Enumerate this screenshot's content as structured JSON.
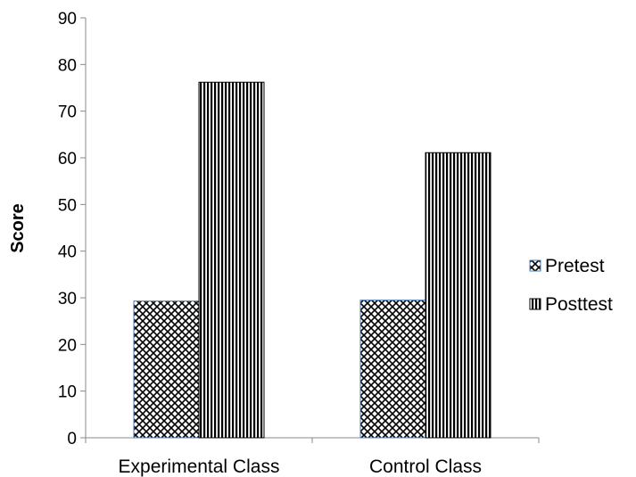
{
  "chart_data": {
    "type": "bar",
    "title": "",
    "xlabel": "",
    "ylabel": "Score",
    "ylim": [
      0,
      90
    ],
    "yticks": [
      0,
      10,
      20,
      30,
      40,
      50,
      60,
      70,
      80,
      90
    ],
    "categories": [
      "Experimental Class",
      "Control Class"
    ],
    "series": [
      {
        "name": "Pretest",
        "values": [
          29.3,
          29.5
        ],
        "pattern": "crosshatch",
        "border_color": "#4a7ebb"
      },
      {
        "name": "Posttest",
        "values": [
          76.2,
          61.1
        ],
        "pattern": "vertical-lines",
        "border_color": "#000000"
      }
    ],
    "legend_position": "right",
    "grid": false
  }
}
